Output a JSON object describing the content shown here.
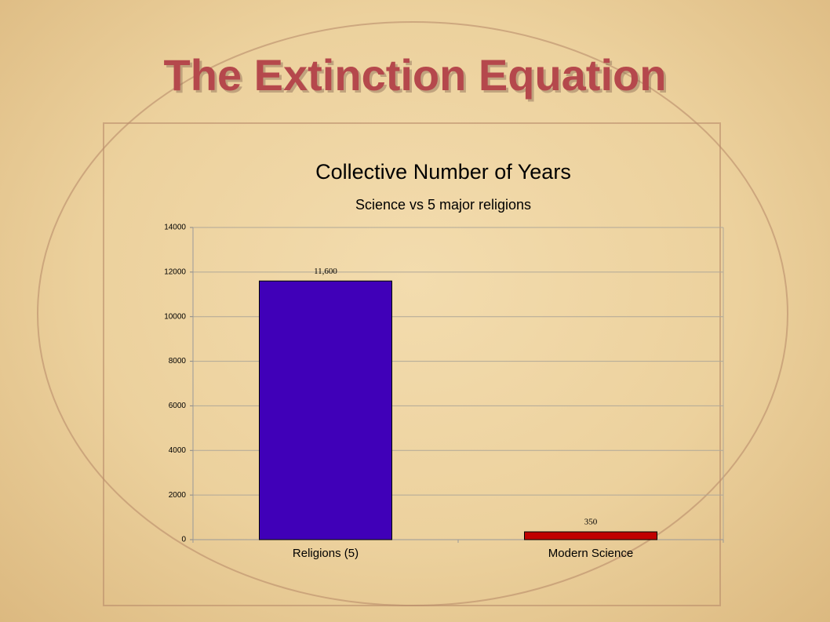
{
  "header": {
    "title": "The Extinction Equation"
  },
  "chart_data": {
    "type": "bar",
    "title": "Collective Number of Years",
    "subtitle": "Science vs 5 major religions",
    "categories": [
      "Religions (5)",
      "Modern Science"
    ],
    "values": [
      11600,
      350
    ],
    "value_labels": [
      "11,600",
      "350"
    ],
    "colors": [
      "#4000b8",
      "#c00000"
    ],
    "ylim": [
      0,
      14000
    ],
    "yticks": [
      0,
      2000,
      4000,
      6000,
      8000,
      10000,
      12000,
      14000
    ],
    "grid": true
  }
}
